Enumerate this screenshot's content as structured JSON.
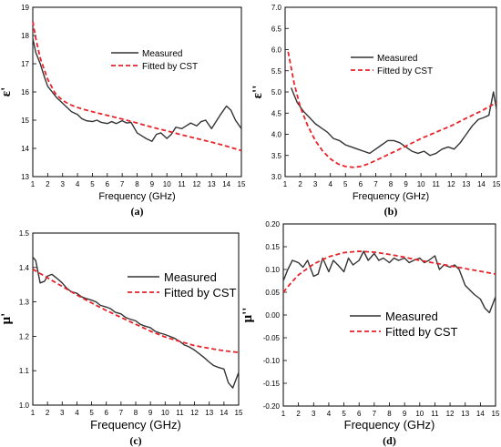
{
  "colors": {
    "measured": "#333333",
    "fitted": "#e8232a",
    "axis": "#000000",
    "background": "#ffffff"
  },
  "chart_data": [
    {
      "id": "a",
      "type": "line",
      "panel_label": "(a)",
      "xlabel": "Frequency (GHz)",
      "ylabel": "ε'",
      "xlim": [
        1,
        15
      ],
      "ylim": [
        13,
        19
      ],
      "xticks": [
        "1",
        "2",
        "3",
        "4",
        "5",
        "6",
        "7",
        "8",
        "9",
        "10",
        "11",
        "12",
        "13",
        "14",
        "15"
      ],
      "yticks": [
        "13",
        "14",
        "15",
        "16",
        "17",
        "18",
        "19"
      ],
      "legend_position": "top-right",
      "series": [
        {
          "name": "Measured",
          "style": "solid",
          "x": [
            1,
            1.2,
            1.5,
            1.8,
            2,
            2.3,
            2.6,
            3,
            3.3,
            3.6,
            4,
            4.3,
            4.6,
            5,
            5.3,
            5.6,
            6,
            6.3,
            6.6,
            7,
            7.3,
            7.6,
            8,
            8.3,
            8.6,
            9,
            9.3,
            9.6,
            10,
            10.3,
            10.6,
            11,
            11.3,
            11.6,
            12,
            12.3,
            12.6,
            13,
            13.3,
            13.6,
            14,
            14.3,
            14.6,
            15
          ],
          "y": [
            17.9,
            17.4,
            17.0,
            16.5,
            16.2,
            16.0,
            15.8,
            15.6,
            15.45,
            15.3,
            15.2,
            15.05,
            14.98,
            14.95,
            15.0,
            14.92,
            14.88,
            14.95,
            14.88,
            14.98,
            14.9,
            14.92,
            14.55,
            14.45,
            14.35,
            14.25,
            14.5,
            14.55,
            14.35,
            14.5,
            14.75,
            14.7,
            14.8,
            14.9,
            14.8,
            14.95,
            15.0,
            14.7,
            14.95,
            15.2,
            15.5,
            15.35,
            15.0,
            14.7
          ]
        },
        {
          "name": "Fitted by CST",
          "style": "dashed",
          "x": [
            1,
            1.2,
            1.5,
            2,
            2.5,
            3,
            3.5,
            4,
            4.5,
            5,
            6,
            7,
            8,
            9,
            10,
            11,
            12,
            13,
            14,
            15
          ],
          "y": [
            18.5,
            17.9,
            17.2,
            16.45,
            15.95,
            15.7,
            15.55,
            15.45,
            15.37,
            15.3,
            15.17,
            15.04,
            14.9,
            14.75,
            14.62,
            14.48,
            14.35,
            14.22,
            14.08,
            13.92
          ]
        }
      ]
    },
    {
      "id": "b",
      "type": "line",
      "panel_label": "(b)",
      "xlabel": "Frequency (GHz)",
      "ylabel": "ε''",
      "xlim": [
        1,
        15
      ],
      "ylim": [
        3.0,
        7.0
      ],
      "xticks": [
        "1",
        "2",
        "3",
        "4",
        "5",
        "6",
        "7",
        "8",
        "9",
        "10",
        "11",
        "12",
        "13",
        "14",
        "15"
      ],
      "yticks": [
        "3.0",
        "3.5",
        "4.0",
        "4.5",
        "5.0",
        "5.5",
        "6.0",
        "6.5",
        "7.0"
      ],
      "legend_position": "top-right",
      "series": [
        {
          "name": "Measured",
          "style": "solid",
          "x": [
            1.4,
            1.8,
            2.2,
            2.6,
            3,
            3.4,
            3.8,
            4.2,
            4.6,
            5,
            5.4,
            5.8,
            6.2,
            6.6,
            7,
            7.4,
            7.8,
            8.2,
            8.6,
            9,
            9.4,
            9.8,
            10.2,
            10.6,
            11,
            11.4,
            11.8,
            12.2,
            12.6,
            13,
            13.4,
            13.8,
            14.2,
            14.5,
            14.8,
            15
          ],
          "y": [
            5.1,
            4.75,
            4.55,
            4.4,
            4.25,
            4.15,
            4.05,
            3.9,
            3.85,
            3.75,
            3.7,
            3.65,
            3.6,
            3.55,
            3.65,
            3.75,
            3.85,
            3.85,
            3.8,
            3.7,
            3.6,
            3.55,
            3.6,
            3.5,
            3.55,
            3.65,
            3.7,
            3.65,
            3.8,
            4.0,
            4.2,
            4.35,
            4.4,
            4.45,
            5.0,
            4.6
          ]
        },
        {
          "name": "Fitted by CST",
          "style": "dashed",
          "x": [
            1.2,
            1.6,
            2,
            2.5,
            3,
            3.5,
            4,
            4.5,
            5,
            5.5,
            6,
            6.5,
            7,
            8,
            9,
            10,
            11,
            12,
            13,
            14,
            15
          ],
          "y": [
            5.95,
            5.2,
            4.65,
            4.2,
            3.85,
            3.6,
            3.42,
            3.3,
            3.24,
            3.22,
            3.24,
            3.3,
            3.38,
            3.55,
            3.72,
            3.9,
            4.05,
            4.2,
            4.38,
            4.55,
            4.75
          ]
        }
      ]
    },
    {
      "id": "c",
      "type": "line",
      "panel_label": "(c)",
      "xlabel": "Frequency (GHz)",
      "ylabel": "μ'",
      "xlim": [
        1,
        15
      ],
      "ylim": [
        1.0,
        1.5
      ],
      "xticks": [
        "1",
        "2",
        "3",
        "4",
        "5",
        "6",
        "7",
        "8",
        "9",
        "10",
        "11",
        "12",
        "13",
        "14",
        "15"
      ],
      "yticks": [
        "1.0",
        "1.1",
        "1.2",
        "1.3",
        "1.4",
        "1.5"
      ],
      "legend_position": "top-right",
      "series": [
        {
          "name": "Measured",
          "style": "solid",
          "x": [
            1,
            1.2,
            1.5,
            1.8,
            2,
            2.3,
            2.6,
            3,
            3.3,
            3.6,
            4,
            4.3,
            4.6,
            5,
            5.3,
            5.6,
            6,
            6.3,
            6.6,
            7,
            7.3,
            7.6,
            8,
            8.3,
            8.6,
            9,
            9.3,
            9.6,
            10,
            10.3,
            10.6,
            11,
            11.3,
            11.6,
            12,
            12.3,
            12.6,
            13,
            13.3,
            13.6,
            14,
            14.3,
            14.6,
            15
          ],
          "y": [
            1.43,
            1.42,
            1.355,
            1.36,
            1.375,
            1.38,
            1.37,
            1.355,
            1.34,
            1.33,
            1.325,
            1.315,
            1.31,
            1.305,
            1.3,
            1.29,
            1.285,
            1.28,
            1.27,
            1.265,
            1.255,
            1.25,
            1.245,
            1.235,
            1.23,
            1.225,
            1.215,
            1.21,
            1.205,
            1.2,
            1.195,
            1.185,
            1.175,
            1.17,
            1.16,
            1.15,
            1.14,
            1.125,
            1.115,
            1.11,
            1.105,
            1.065,
            1.05,
            1.095
          ]
        },
        {
          "name": "Fitted by CST",
          "style": "dashed",
          "x": [
            1,
            2,
            3,
            4,
            5,
            6,
            7,
            8,
            9,
            10,
            11,
            12,
            13,
            14,
            15
          ],
          "y": [
            1.395,
            1.37,
            1.345,
            1.32,
            1.297,
            1.275,
            1.255,
            1.235,
            1.215,
            1.198,
            1.185,
            1.173,
            1.165,
            1.158,
            1.153
          ]
        }
      ]
    },
    {
      "id": "d",
      "type": "line",
      "panel_label": "(d)",
      "xlabel": "Frequency (GHz)",
      "ylabel": "μ''",
      "xlim": [
        1,
        15
      ],
      "ylim": [
        -0.2,
        0.2
      ],
      "xticks": [
        "1",
        "2",
        "3",
        "4",
        "5",
        "6",
        "7",
        "8",
        "9",
        "10",
        "11",
        "12",
        "13",
        "14",
        "15"
      ],
      "yticks": [
        "-0.20",
        "-0.15",
        "-0.10",
        "-0.05",
        "0.00",
        "0.05",
        "0.10",
        "0.15",
        "0.20"
      ],
      "legend_position": "middle-center",
      "series": [
        {
          "name": "Measured",
          "style": "solid",
          "x": [
            1,
            1.3,
            1.6,
            2,
            2.3,
            2.6,
            3,
            3.3,
            3.6,
            4,
            4.3,
            4.6,
            5,
            5.3,
            5.6,
            6,
            6.3,
            6.6,
            7,
            7.3,
            7.6,
            8,
            8.3,
            8.6,
            9,
            9.3,
            9.6,
            10,
            10.3,
            10.6,
            11,
            11.3,
            11.6,
            12,
            12.3,
            12.6,
            13,
            13.3,
            13.6,
            14,
            14.3,
            14.6,
            15
          ],
          "y": [
            0.075,
            0.1,
            0.12,
            0.115,
            0.105,
            0.12,
            0.085,
            0.09,
            0.125,
            0.095,
            0.12,
            0.11,
            0.095,
            0.125,
            0.11,
            0.12,
            0.14,
            0.12,
            0.135,
            0.12,
            0.125,
            0.115,
            0.125,
            0.12,
            0.125,
            0.115,
            0.12,
            0.125,
            0.115,
            0.12,
            0.13,
            0.1,
            0.11,
            0.105,
            0.11,
            0.1,
            0.065,
            0.055,
            0.045,
            0.035,
            0.015,
            0.005,
            0.04
          ]
        },
        {
          "name": "Fitted by CST",
          "style": "dashed",
          "x": [
            1,
            1.5,
            2,
            3,
            4,
            5,
            6,
            7,
            8,
            9,
            10,
            11,
            12,
            13,
            14,
            15
          ],
          "y": [
            0.05,
            0.07,
            0.088,
            0.112,
            0.128,
            0.137,
            0.14,
            0.138,
            0.133,
            0.127,
            0.12,
            0.114,
            0.108,
            0.102,
            0.096,
            0.09
          ]
        }
      ]
    }
  ]
}
